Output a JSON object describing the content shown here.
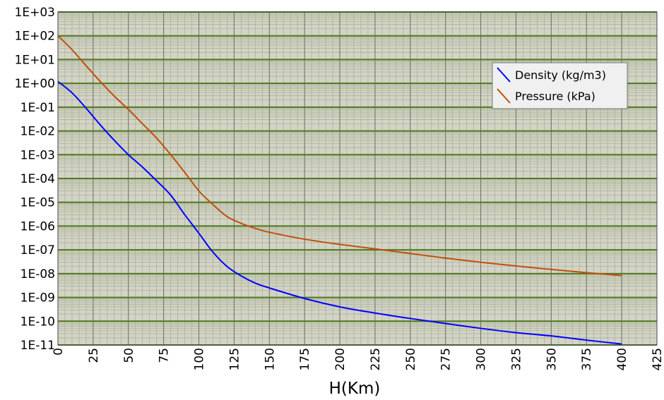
{
  "chart_data": {
    "type": "line",
    "xlabel": "H(Km)",
    "ylabel": "",
    "xlim": [
      0,
      425
    ],
    "ylim": [
      1e-11,
      1000
    ],
    "yscale": "log",
    "grid": true,
    "legend_position": "top-right",
    "x_ticks": [
      "0",
      "25",
      "50",
      "75",
      "100",
      "125",
      "150",
      "175",
      "200",
      "225",
      "250",
      "275",
      "300",
      "325",
      "350",
      "375",
      "400",
      "425"
    ],
    "y_ticks": [
      "1E+03",
      "1E+02",
      "1E+01",
      "1E+00",
      "1E-01",
      "1E-02",
      "1E-03",
      "1E-04",
      "1E-05",
      "1E-06",
      "1E-07",
      "1E-08",
      "1E-09",
      "1E-10",
      "1E-11"
    ],
    "series": [
      {
        "name": "Density (kg/m3)",
        "color": "#0000ff",
        "points": [
          [
            0,
            1.2
          ],
          [
            10,
            0.4
          ],
          [
            20,
            0.09
          ],
          [
            30,
            0.018
          ],
          [
            40,
            0.004
          ],
          [
            50,
            0.001
          ],
          [
            60,
            0.0003
          ],
          [
            70,
            8e-05
          ],
          [
            80,
            2e-05
          ],
          [
            90,
            3e-06
          ],
          [
            100,
            5e-07
          ],
          [
            110,
            8e-08
          ],
          [
            120,
            2e-08
          ],
          [
            130,
            8e-09
          ],
          [
            140,
            4e-09
          ],
          [
            150,
            2.5e-09
          ],
          [
            175,
            9e-10
          ],
          [
            200,
            4e-10
          ],
          [
            225,
            2.2e-10
          ],
          [
            250,
            1.3e-10
          ],
          [
            275,
            8e-11
          ],
          [
            300,
            5e-11
          ],
          [
            325,
            3.3e-11
          ],
          [
            350,
            2.4e-11
          ],
          [
            375,
            1.6e-11
          ],
          [
            400,
            1.1e-11
          ]
        ]
      },
      {
        "name": "Pressure (kPa)",
        "color": "#c0500a",
        "points": [
          [
            0,
            101
          ],
          [
            10,
            26
          ],
          [
            20,
            5.5
          ],
          [
            30,
            1.2
          ],
          [
            40,
            0.29
          ],
          [
            50,
            0.08
          ],
          [
            60,
            0.02
          ],
          [
            70,
            0.005
          ],
          [
            80,
            0.001
          ],
          [
            90,
            0.00018
          ],
          [
            100,
            3e-05
          ],
          [
            110,
            8e-06
          ],
          [
            120,
            2.5e-06
          ],
          [
            130,
            1.3e-06
          ],
          [
            140,
            8e-07
          ],
          [
            150,
            5.5e-07
          ],
          [
            175,
            2.8e-07
          ],
          [
            200,
            1.7e-07
          ],
          [
            225,
            1.1e-07
          ],
          [
            250,
            7e-08
          ],
          [
            275,
            4.5e-08
          ],
          [
            300,
            3e-08
          ],
          [
            325,
            2.1e-08
          ],
          [
            350,
            1.5e-08
          ],
          [
            375,
            1.1e-08
          ],
          [
            400,
            8.3e-09
          ]
        ]
      }
    ]
  }
}
